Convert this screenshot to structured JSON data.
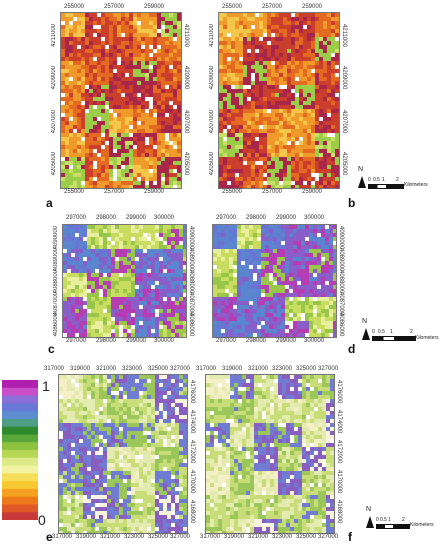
{
  "figure": {
    "panels": [
      {
        "id": "a",
        "x_ticks_top": [
          "255000",
          "257000",
          "259000"
        ],
        "x_ticks_bottom": [
          "255000",
          "257000",
          "259000"
        ],
        "y_ticks": [
          "4211000",
          "4209000",
          "4207000",
          "4205000"
        ]
      },
      {
        "id": "b",
        "x_ticks_top": [
          "255000",
          "257000",
          "259000"
        ],
        "x_ticks_bottom": [
          "255000",
          "257000",
          "259000"
        ],
        "y_ticks": [
          "4211000",
          "4209000",
          "4207000",
          "4205000"
        ]
      },
      {
        "id": "c",
        "x_ticks_top": [
          "297000",
          "298000",
          "299000",
          "300000"
        ],
        "x_ticks_bottom": [
          "297000",
          "298000",
          "299000",
          "300000"
        ],
        "y_ticks": [
          "4090000",
          "4089000",
          "4088000",
          "4087000",
          "4086000"
        ]
      },
      {
        "id": "d",
        "x_ticks_top": [
          "297000",
          "298000",
          "299000",
          "300000"
        ],
        "x_ticks_bottom": [
          "297000",
          "298000",
          "299000",
          "300000"
        ],
        "y_ticks": [
          "4090000",
          "4089000",
          "4088000",
          "4087000",
          "4086000"
        ]
      },
      {
        "id": "e",
        "x_ticks_top": [
          "317000",
          "319000",
          "321000",
          "323000",
          "325000",
          "327000"
        ],
        "x_ticks_bottom": [
          "317000",
          "319000",
          "321000",
          "323000",
          "325000",
          "327000"
        ],
        "y_ticks": [
          "4176000",
          "4174000",
          "4172000",
          "4170000",
          "4168000"
        ]
      },
      {
        "id": "f",
        "x_ticks_top": [
          "317000",
          "319000",
          "321000",
          "323000",
          "325000",
          "327000"
        ],
        "x_ticks_bottom": [
          "317000",
          "319000",
          "321000",
          "323000",
          "325000",
          "327000"
        ],
        "y_ticks": [
          "4176000",
          "4174000",
          "4172000",
          "4170000",
          "4168000"
        ]
      }
    ],
    "scalebars": [
      {
        "north": "N",
        "labels": [
          "0",
          "0.5",
          "1",
          "2"
        ],
        "unit": "Kilometers"
      },
      {
        "north": "N",
        "labels": [
          "0",
          "0.5",
          "1",
          "2"
        ],
        "unit": "Kilometers"
      },
      {
        "north": "N",
        "labels": [
          "0",
          "0.5",
          "1",
          "2"
        ],
        "unit": "Kilometers"
      }
    ],
    "legend": {
      "max_label": "1",
      "min_label": "0",
      "colors": [
        "#b01fb0",
        "#c84fc8",
        "#8a6fd6",
        "#6a78d8",
        "#5d8fd0",
        "#4e9e86",
        "#2e8a2e",
        "#5aa83a",
        "#8cc23e",
        "#b8d656",
        "#dcea8a",
        "#f2f2a0",
        "#f6de5a",
        "#f8c830",
        "#f4a020",
        "#ee7a1c",
        "#e05a28",
        "#c83a3a"
      ]
    },
    "palettes": {
      "warm": [
        "#f4c64a",
        "#f09a2c",
        "#e46a22",
        "#cc3e2c",
        "#a8264a",
        "#9ccd48",
        "#c9df66",
        "#ffffff"
      ],
      "cool": [
        "#6a74d4",
        "#5a86d0",
        "#8a5ec8",
        "#b63cb4",
        "#98c648",
        "#c8dc60",
        "#e8f0a0",
        "#ffffff"
      ],
      "light": [
        "#f4efc6",
        "#e4ebb0",
        "#c8dc78",
        "#9ac65a",
        "#6f7cd2",
        "#8a5ec0",
        "#f8f4dc",
        "#ffffff"
      ]
    }
  }
}
